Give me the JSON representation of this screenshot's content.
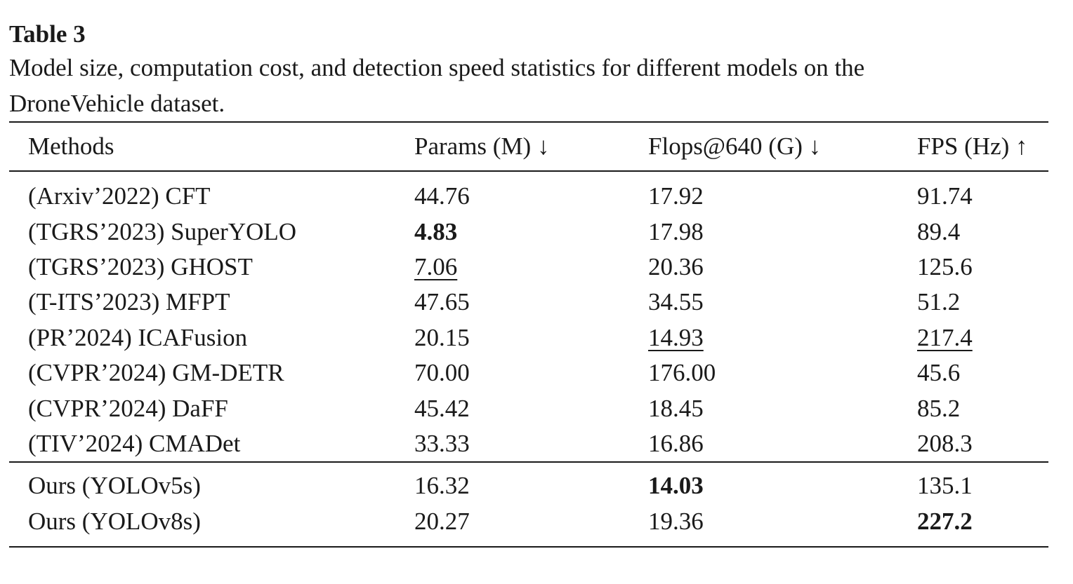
{
  "table_label": "Table 3",
  "caption_line1": "Model size, computation cost, and detection speed statistics for different models on the",
  "caption_line2": "DroneVehicle dataset.",
  "headers": {
    "methods": "Methods",
    "params": "Params (M) ↓",
    "flops": "Flops@640 (G) ↓",
    "fps": "FPS (Hz) ↑"
  },
  "rows": [
    {
      "method": "(Arxiv’2022) CFT",
      "params": "44.76",
      "flops": "17.92",
      "fps": "91.74"
    },
    {
      "method": "(TGRS’2023) SuperYOLO",
      "params": "4.83",
      "flops": "17.98",
      "fps": "89.4"
    },
    {
      "method": "(TGRS’2023) GHOST",
      "params": "7.06",
      "flops": "20.36",
      "fps": "125.6"
    },
    {
      "method": "(T-ITS’2023) MFPT",
      "params": "47.65",
      "flops": "34.55",
      "fps": "51.2"
    },
    {
      "method": "(PR’2024) ICAFusion",
      "params": "20.15",
      "flops": "14.93",
      "fps": "217.4"
    },
    {
      "method": "(CVPR’2024) GM-DETR",
      "params": "70.00",
      "flops": "176.00",
      "fps": "45.6"
    },
    {
      "method": "(CVPR’2024) DaFF",
      "params": "45.42",
      "flops": "18.45",
      "fps": "85.2"
    },
    {
      "method": "(TIV’2024) CMADet",
      "params": "33.33",
      "flops": "16.86",
      "fps": "208.3"
    }
  ],
  "ours": [
    {
      "method": "Ours (YOLOv5s)",
      "params": "16.32",
      "flops": "14.03",
      "fps": "135.1"
    },
    {
      "method": "Ours (YOLOv8s)",
      "params": "20.27",
      "flops": "19.36",
      "fps": "227.2"
    }
  ]
}
